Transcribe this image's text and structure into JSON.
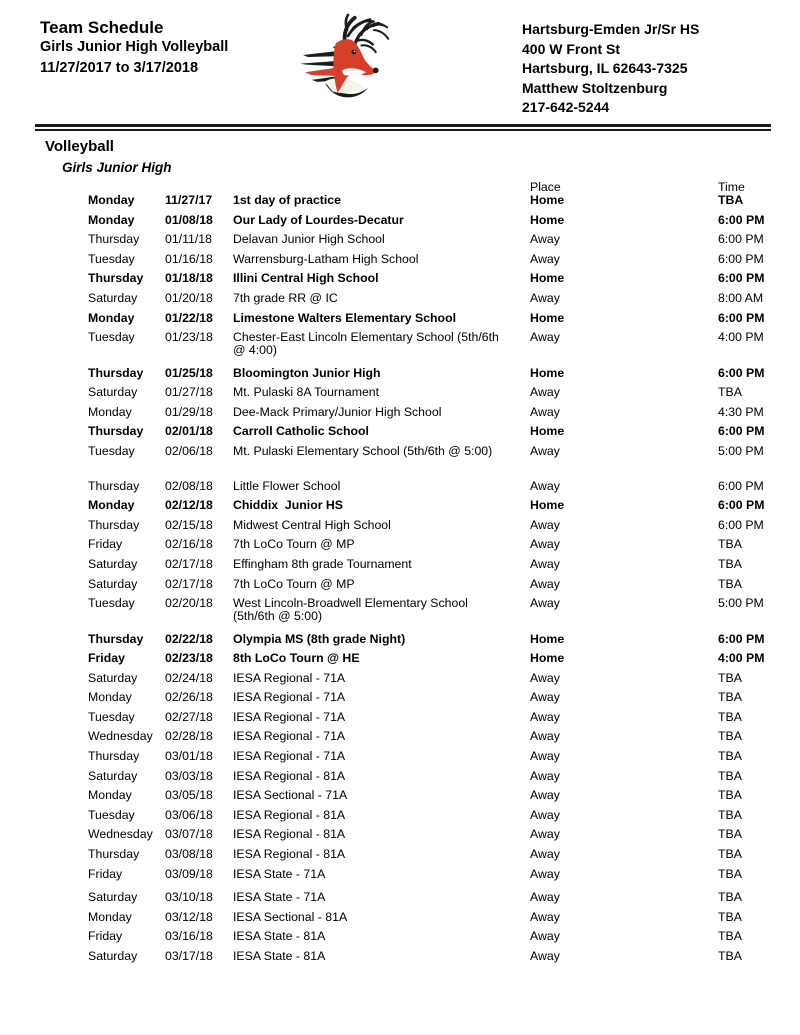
{
  "header": {
    "title": "Team Schedule",
    "subtitle": "Girls Junior High Volleyball",
    "date_range": "11/27/2017 to 3/17/2018",
    "logo": "stag-mascot-logo",
    "logo_colors": {
      "red": "#d6402a",
      "black": "#1c1c1c",
      "cream": "#f7f3e8"
    },
    "school": {
      "name": "Hartsburg-Emden Jr/Sr HS",
      "street": "400 W Front St",
      "city_state_zip": "Hartsburg, IL 62643-7325",
      "contact": "Matthew Stoltzenburg",
      "phone": "217-642-5244"
    }
  },
  "section": {
    "sport": "Volleyball",
    "team": "Girls Junior High"
  },
  "table": {
    "columns": {
      "place": "Place",
      "time": "Time"
    },
    "rows": [
      {
        "day": "Monday",
        "date": "11/27/17",
        "event": "1st day of practice",
        "place": "Home",
        "time": "TBA",
        "bold": true
      },
      {
        "day": "Monday",
        "date": "01/08/18",
        "event": "Our Lady of Lourdes-Decatur",
        "place": "Home",
        "time": "6:00 PM",
        "bold": true
      },
      {
        "day": "Thursday",
        "date": "01/11/18",
        "event": "Delavan Junior High School",
        "place": "Away",
        "time": "6:00 PM",
        "bold": false
      },
      {
        "day": "Tuesday",
        "date": "01/16/18",
        "event": "Warrensburg-Latham High School",
        "place": "Away",
        "time": "6:00 PM",
        "bold": false
      },
      {
        "day": "Thursday",
        "date": "01/18/18",
        "event": "Illini Central High School",
        "place": "Home",
        "time": "6:00 PM",
        "bold": true
      },
      {
        "day": "Saturday",
        "date": "01/20/18",
        "event": "7th grade RR @ IC",
        "place": "Away",
        "time": "8:00 AM",
        "bold": false
      },
      {
        "day": "Monday",
        "date": "01/22/18",
        "event": "Limestone Walters Elementary School",
        "place": "Home",
        "time": "6:00 PM",
        "bold": true
      },
      {
        "day": "Tuesday",
        "date": "01/23/18",
        "event": "Chester-East Lincoln Elementary School (5th/6th @ 4:00)",
        "event_lines": [
          "Chester-East Lincoln Elementary School (5th/6th",
          "@ 4:00)"
        ],
        "place": "Away",
        "time": "4:00 PM",
        "bold": false
      },
      {
        "day": "Thursday",
        "date": "01/25/18",
        "event": "Bloomington Junior High",
        "place": "Home",
        "time": "6:00 PM",
        "bold": true
      },
      {
        "day": "Saturday",
        "date": "01/27/18",
        "event": "Mt. Pulaski 8A Tournament",
        "place": "Away",
        "time": "TBA",
        "bold": false
      },
      {
        "day": "Monday",
        "date": "01/29/18",
        "event": "Dee-Mack Primary/Junior High School",
        "place": "Away",
        "time": "4:30 PM",
        "bold": false
      },
      {
        "day": "Thursday",
        "date": "02/01/18",
        "event": "Carroll Catholic School",
        "place": "Home",
        "time": "6:00 PM",
        "bold": true
      },
      {
        "day": "Tuesday",
        "date": "02/06/18",
        "event": "Mt. Pulaski Elementary School (5th/6th @ 5:00)",
        "place": "Away",
        "time": "5:00 PM",
        "bold": false
      },
      {
        "day": "Thursday",
        "date": "02/08/18",
        "event": "Little Flower School",
        "place": "Away",
        "time": "6:00 PM",
        "bold": false,
        "gap_before": "blank"
      },
      {
        "day": "Monday",
        "date": "02/12/18",
        "event": "Chiddix  Junior HS",
        "place": "Home",
        "time": "6:00 PM",
        "bold": true
      },
      {
        "day": "Thursday",
        "date": "02/15/18",
        "event": "Midwest Central High School",
        "place": "Away",
        "time": "6:00 PM",
        "bold": false
      },
      {
        "day": "Friday",
        "date": "02/16/18",
        "event": "7th LoCo Tourn @ MP",
        "place": "Away",
        "time": "TBA",
        "bold": false
      },
      {
        "day": "Saturday",
        "date": "02/17/18",
        "event": "Effingham 8th grade Tournament",
        "place": "Away",
        "time": "TBA",
        "bold": false
      },
      {
        "day": "Saturday",
        "date": "02/17/18",
        "event": "7th LoCo Tourn @ MP",
        "place": "Away",
        "time": "TBA",
        "bold": false
      },
      {
        "day": "Tuesday",
        "date": "02/20/18",
        "event": "West Lincoln-Broadwell Elementary School (5th/6th @ 5:00)",
        "event_lines": [
          "West Lincoln-Broadwell Elementary School",
          "(5th/6th @ 5:00)"
        ],
        "place": "Away",
        "time": "5:00 PM",
        "bold": false
      },
      {
        "day": "Thursday",
        "date": "02/22/18",
        "event": "Olympia MS (8th grade Night)",
        "place": "Home",
        "time": "6:00 PM",
        "bold": true
      },
      {
        "day": "Friday",
        "date": "02/23/18",
        "event": "8th LoCo Tourn @ HE",
        "place": "Home",
        "time": "4:00 PM",
        "bold": true
      },
      {
        "day": "Saturday",
        "date": "02/24/18",
        "event": "IESA Regional - 71A",
        "place": "Away",
        "time": "TBA",
        "bold": false
      },
      {
        "day": "Monday",
        "date": "02/26/18",
        "event": "IESA Regional - 71A",
        "place": "Away",
        "time": "TBA",
        "bold": false
      },
      {
        "day": "Tuesday",
        "date": "02/27/18",
        "event": "IESA Regional - 71A",
        "place": "Away",
        "time": "TBA",
        "bold": false
      },
      {
        "day": "Wednesday",
        "date": "02/28/18",
        "event": "IESA Regional - 71A",
        "place": "Away",
        "time": "TBA",
        "bold": false
      },
      {
        "day": "Thursday",
        "date": "03/01/18",
        "event": "IESA Regional - 71A",
        "place": "Away",
        "time": "TBA",
        "bold": false
      },
      {
        "day": "Saturday",
        "date": "03/03/18",
        "event": "IESA Regional - 81A",
        "place": "Away",
        "time": "TBA",
        "bold": false
      },
      {
        "day": "Monday",
        "date": "03/05/18",
        "event": "IESA Sectional - 71A",
        "place": "Away",
        "time": "TBA",
        "bold": false
      },
      {
        "day": "Tuesday",
        "date": "03/06/18",
        "event": "IESA Regional - 81A",
        "place": "Away",
        "time": "TBA",
        "bold": false
      },
      {
        "day": "Wednesday",
        "date": "03/07/18",
        "event": "IESA Regional - 81A",
        "place": "Away",
        "time": "TBA",
        "bold": false
      },
      {
        "day": "Thursday",
        "date": "03/08/18",
        "event": "IESA Regional - 81A",
        "place": "Away",
        "time": "TBA",
        "bold": false
      },
      {
        "day": "Friday",
        "date": "03/09/18",
        "event": "IESA State - 71A",
        "place": "Away",
        "time": "TBA",
        "bold": false
      },
      {
        "day": "Saturday",
        "date": "03/10/18",
        "event": "IESA State - 71A",
        "place": "Away",
        "time": "TBA",
        "bold": false,
        "gap_before": "small"
      },
      {
        "day": "Monday",
        "date": "03/12/18",
        "event": "IESA Sectional - 81A",
        "place": "Away",
        "time": "TBA",
        "bold": false
      },
      {
        "day": "Friday",
        "date": "03/16/18",
        "event": "IESA State - 81A",
        "place": "Away",
        "time": "TBA",
        "bold": false
      },
      {
        "day": "Saturday",
        "date": "03/17/18",
        "event": "IESA State - 81A",
        "place": "Away",
        "time": "TBA",
        "bold": false
      }
    ]
  }
}
